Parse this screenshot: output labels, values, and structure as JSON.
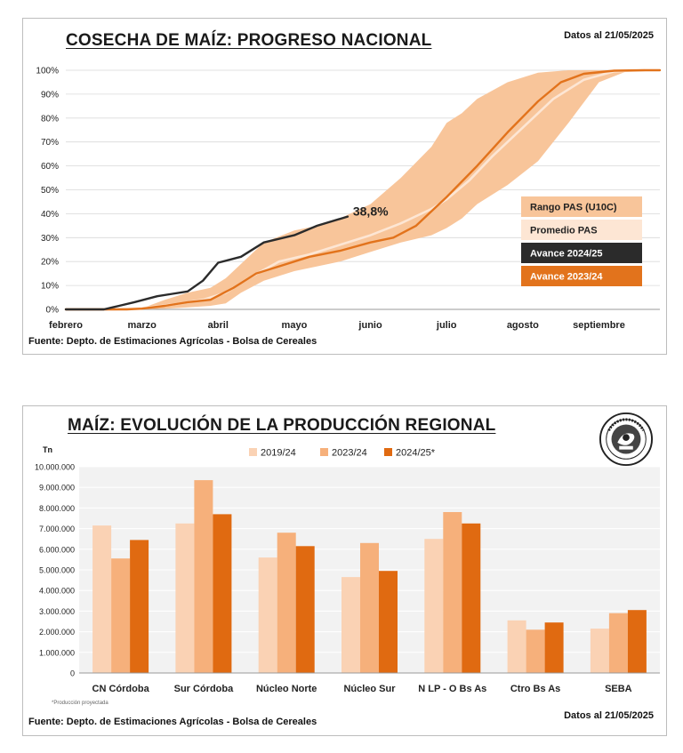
{
  "colors": {
    "range": "#f8c59a",
    "avg": "#fde6d4",
    "current": "#2b2b2b",
    "previous": "#e2731c",
    "bar_2019": "#fad2b4",
    "bar_2023": "#f6b07b",
    "bar_2024": "#e06a11"
  },
  "logo": {
    "text": "Bolsa de Cereales"
  },
  "chart1": {
    "title": "COSECHA DE MAÍZ: PROGRESO NACIONAL",
    "date": "Datos al 21/05/2025",
    "source": "Fuente: Depto. de Estimaciones Agrícolas - Bolsa de Cereales",
    "legend": [
      "Rango PAS (U10C)",
      "Promedio PAS",
      "Avance 2024/25",
      "Avance 2023/24"
    ],
    "callout": "38,8%"
  },
  "chart2": {
    "title": "MAÍZ: EVOLUCIÓN DE LA PRODUCCIÓN REGIONAL",
    "date": "Datos al 21/05/2025",
    "source": "Fuente: Depto. de Estimaciones Agrícolas - Bolsa de Cereales",
    "unit": "Tn",
    "note": "*Producción proyectada"
  },
  "chart_data": [
    {
      "type": "area",
      "title": "COSECHA DE MAÍZ: PROGRESO NACIONAL",
      "xlabel": "",
      "ylabel": "",
      "x_ticks": [
        "febrero",
        "marzo",
        "abril",
        "mayo",
        "junio",
        "julio",
        "agosto",
        "septiembre"
      ],
      "y_ticks": [
        "0%",
        "10%",
        "20%",
        "30%",
        "40%",
        "50%",
        "60%",
        "70%",
        "80%",
        "90%",
        "100%"
      ],
      "ylim": [
        0,
        100
      ],
      "xlim_months": [
        0,
        7.8
      ],
      "grid": true,
      "legend_position": "right",
      "series": [
        {
          "name": "Rango PAS (U10C)",
          "kind": "band",
          "x": [
            0,
            0.4,
            0.8,
            1.0,
            1.3,
            1.6,
            1.9,
            2.1,
            2.3,
            2.6,
            3.0,
            3.3,
            3.6,
            4.0,
            4.4,
            4.8,
            5.0,
            5.2,
            5.4,
            5.8,
            6.2,
            6.6,
            7.0,
            7.4,
            7.8
          ],
          "low": [
            0,
            0,
            0,
            0,
            0.3,
            0.8,
            1.5,
            2.5,
            7,
            12,
            16,
            18,
            20,
            24,
            28,
            31,
            34,
            38,
            44,
            52,
            62,
            78,
            95,
            100,
            100
          ],
          "high": [
            0,
            0,
            0,
            0.5,
            4,
            7,
            9,
            13,
            19,
            28,
            33,
            35,
            38,
            44,
            55,
            68,
            78,
            82,
            88,
            95,
            99,
            100,
            100,
            100,
            100
          ]
        },
        {
          "name": "Promedio PAS",
          "kind": "line",
          "x": [
            0,
            0.6,
            1.0,
            1.4,
            1.8,
            2.1,
            2.4,
            2.8,
            3.2,
            3.6,
            4.0,
            4.4,
            4.8,
            5.0,
            5.3,
            5.6,
            6.0,
            6.4,
            6.8,
            7.2,
            7.6
          ],
          "y": [
            0,
            0,
            0.5,
            2,
            4,
            7,
            13,
            20,
            23,
            27,
            31,
            36,
            42,
            46,
            54,
            64,
            76,
            88,
            96,
            99.5,
            100
          ]
        },
        {
          "name": "Avance 2024/25",
          "kind": "line",
          "x": [
            0,
            0.5,
            0.7,
            0.9,
            1.2,
            1.4,
            1.6,
            1.8,
            2.0,
            2.3,
            2.6,
            3.0,
            3.3,
            3.7
          ],
          "y": [
            0,
            0,
            1.5,
            3,
            5.5,
            6.5,
            7.5,
            12,
            19.5,
            22,
            28,
            31,
            35,
            38.8
          ]
        },
        {
          "name": "Avance 2023/24",
          "kind": "line",
          "x": [
            0,
            0.8,
            1.0,
            1.3,
            1.6,
            1.9,
            2.2,
            2.5,
            2.8,
            3.2,
            3.6,
            4.0,
            4.3,
            4.6,
            5.0,
            5.4,
            5.8,
            6.2,
            6.5,
            6.8,
            7.2,
            7.6,
            7.8
          ],
          "y": [
            0,
            0,
            0.3,
            1.5,
            3,
            4,
            9,
            15,
            18,
            22,
            24.5,
            28,
            30,
            35,
            47,
            60,
            74,
            87,
            95,
            98.5,
            99.8,
            100,
            100
          ]
        }
      ],
      "annotations": [
        {
          "text": "38,8%",
          "x": 3.7,
          "y": 38.8
        }
      ]
    },
    {
      "type": "bar",
      "title": "MAÍZ: EVOLUCIÓN DE LA PRODUCCIÓN REGIONAL",
      "xlabel": "",
      "ylabel": "Tn",
      "categories": [
        "CN Córdoba",
        "Sur Córdoba",
        "Núcleo Norte",
        "Núcleo Sur",
        "N LP - O Bs As",
        "Ctro Bs As",
        "SEBA"
      ],
      "y_ticks": [
        "0",
        "1.000.000",
        "2.000.000",
        "3.000.000",
        "4.000.000",
        "5.000.000",
        "6.000.000",
        "7.000.000",
        "8.000.000",
        "9.000.000",
        "10.000.000"
      ],
      "ylim": [
        0,
        10000000
      ],
      "grid": true,
      "legend_position": "top",
      "series": [
        {
          "name": "2019/24",
          "values": [
            7150000,
            7250000,
            5600000,
            4650000,
            6500000,
            2550000,
            2150000
          ]
        },
        {
          "name": "2023/24",
          "values": [
            5550000,
            9350000,
            6800000,
            6300000,
            7800000,
            2100000,
            2900000
          ]
        },
        {
          "name": "2024/25*",
          "values": [
            6450000,
            7700000,
            6150000,
            4950000,
            7250000,
            2450000,
            3050000
          ]
        }
      ]
    }
  ]
}
